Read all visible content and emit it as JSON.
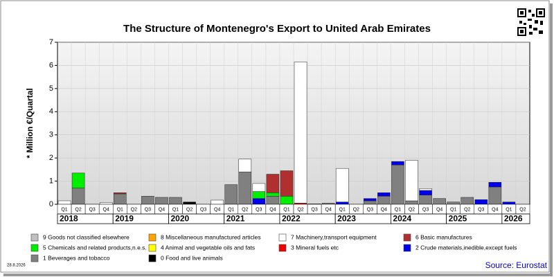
{
  "chart_data": {
    "type": "stacked_bar",
    "title": "The Structure of Montenegro's Export to United Arab Emirates",
    "y_label": "* Million €/Quartal",
    "date": "28.8.2026",
    "source": "Source: Eurostat",
    "ylim": [
      0,
      7
    ],
    "yticks": [
      0,
      1,
      2,
      3,
      4,
      5,
      6,
      7
    ],
    "categories": [
      "Q1",
      "Q2",
      "Q3",
      "Q4",
      "Q1",
      "Q2",
      "Q3",
      "Q4",
      "Q1",
      "Q2",
      "Q3",
      "Q4",
      "Q1",
      "Q2",
      "Q3",
      "Q4",
      "Q1",
      "Q2",
      "Q3",
      "Q4",
      "Q1",
      "Q2",
      "Q3",
      "Q4",
      "Q1",
      "Q2",
      "Q3",
      "Q4",
      "Q1",
      "Q2",
      "Q3",
      "Q4",
      "Q1",
      "Q2"
    ],
    "years": [
      "2018",
      "2019",
      "2020",
      "2021",
      "2022",
      "2023",
      "2024",
      "2025",
      "2026"
    ],
    "series": [
      {
        "name": "9 Goods not classified elsewhere",
        "color": "#c0c0c0",
        "values": [
          0,
          0,
          0,
          0,
          0,
          0,
          0,
          0,
          0,
          0,
          0,
          0,
          0,
          0,
          0,
          0,
          0,
          0,
          0,
          0,
          0,
          0,
          0,
          0,
          0,
          0,
          0,
          0,
          0,
          0,
          0,
          0,
          0,
          0
        ]
      },
      {
        "name": "8 Miscellaneous manufactured articles",
        "color": "#ffa500",
        "values": [
          0,
          0,
          0,
          0,
          0,
          0,
          0,
          0,
          0,
          0,
          0,
          0,
          0,
          0,
          0,
          0,
          0,
          0,
          0,
          0,
          0,
          0,
          0,
          0,
          0,
          0,
          0,
          0,
          0,
          0,
          0,
          0,
          0,
          0
        ]
      },
      {
        "name": "7 Machinery,transport equipment",
        "color": "#ffffff",
        "values": [
          0.15,
          0,
          0,
          0.08,
          0,
          0,
          0,
          0,
          0,
          0,
          0,
          0.18,
          0,
          0.55,
          0.35,
          0,
          0,
          6.1,
          0,
          0,
          1.45,
          0,
          0,
          0,
          0,
          1.75,
          0.08,
          0,
          0,
          0,
          0,
          0,
          0,
          0
        ]
      },
      {
        "name": "6 Basic manufactures",
        "color": "#b03030",
        "values": [
          0,
          0,
          0,
          0,
          0.05,
          0,
          0,
          0,
          0,
          0,
          0,
          0,
          0,
          0,
          0,
          0.8,
          1.1,
          0,
          0,
          0,
          0,
          0,
          0,
          0,
          0,
          0,
          0,
          0,
          0,
          0,
          0,
          0,
          0,
          0
        ]
      },
      {
        "name": "5 Chemicals and related products,n.e.s.",
        "color": "#00ee00",
        "values": [
          0,
          0.65,
          0,
          0,
          0,
          0,
          0,
          0,
          0,
          0,
          0,
          0,
          0,
          0,
          0.3,
          0.15,
          0.35,
          0,
          0,
          0,
          0,
          0,
          0,
          0,
          0,
          0,
          0,
          0,
          0,
          0,
          0,
          0,
          0,
          0
        ]
      },
      {
        "name": "4 Animal and vegetable oils and fats",
        "color": "#ffff00",
        "values": [
          0,
          0,
          0,
          0,
          0,
          0,
          0,
          0,
          0,
          0,
          0,
          0,
          0,
          0,
          0,
          0,
          0,
          0,
          0,
          0,
          0,
          0,
          0,
          0,
          0,
          0,
          0,
          0,
          0,
          0,
          0,
          0,
          0,
          0
        ]
      },
      {
        "name": "3 Mineral fuels etc",
        "color": "#ee0000",
        "values": [
          0,
          0,
          0,
          0,
          0,
          0,
          0,
          0,
          0,
          0,
          0,
          0,
          0,
          0,
          0,
          0,
          0,
          0.05,
          0,
          0,
          0,
          0,
          0,
          0,
          0,
          0,
          0,
          0,
          0,
          0,
          0,
          0,
          0,
          0
        ]
      },
      {
        "name": "2 Crude materials,inedible,except fuels",
        "color": "#0000ee",
        "values": [
          0,
          0,
          0,
          0,
          0,
          0,
          0,
          0,
          0,
          0,
          0,
          0,
          0,
          0,
          0.25,
          0,
          0,
          0,
          0,
          0,
          0.1,
          0,
          0.1,
          0.15,
          0.15,
          0,
          0.2,
          0,
          0,
          0,
          0.2,
          0.2,
          0.1,
          0
        ]
      },
      {
        "name": "1 Beverages and tobacco",
        "color": "#808080",
        "values": [
          0,
          0.7,
          0,
          0,
          0.45,
          0,
          0.35,
          0.3,
          0.3,
          0,
          0,
          0,
          0.85,
          1.4,
          0,
          0.35,
          0,
          0,
          0.02,
          0.05,
          0,
          0,
          0.15,
          0.35,
          1.7,
          0.15,
          0.4,
          0.25,
          0.1,
          0.3,
          0,
          0.75,
          0,
          0
        ]
      },
      {
        "name": "0 Food and live animals",
        "color": "#000000",
        "values": [
          0,
          0,
          0,
          0,
          0,
          0,
          0,
          0,
          0,
          0.1,
          0,
          0,
          0,
          0,
          0,
          0,
          0,
          0,
          0,
          0,
          0,
          0,
          0,
          0,
          0,
          0,
          0,
          0,
          0,
          0,
          0,
          0,
          0,
          0
        ]
      }
    ]
  }
}
